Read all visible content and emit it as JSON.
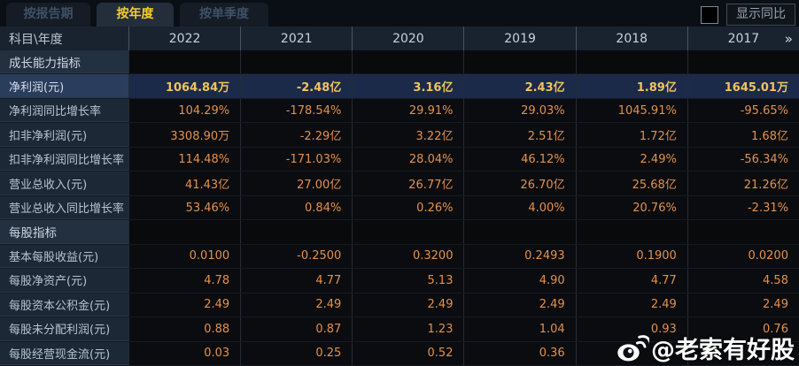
{
  "tabs": [
    {
      "label": "按报告期",
      "active": false
    },
    {
      "label": "按年度",
      "active": true
    },
    {
      "label": "按单季度",
      "active": false
    }
  ],
  "controls": {
    "show_yoy_label": "显示同比",
    "checkbox_checked": false
  },
  "table": {
    "corner_label": "科目\\年度",
    "years": [
      "2022",
      "2021",
      "2020",
      "2019",
      "2018",
      "2017"
    ],
    "more_icon": "»",
    "rows": [
      {
        "type": "section",
        "label": "成长能力指标",
        "values": [
          "",
          "",
          "",
          "",
          "",
          ""
        ]
      },
      {
        "type": "highlight",
        "label": "净利润(元)",
        "values": [
          "1064.84万",
          "-2.48亿",
          "3.16亿",
          "2.43亿",
          "1.89亿",
          "1645.01万"
        ]
      },
      {
        "type": "data",
        "label": "净利润同比增长率",
        "values": [
          "104.29%",
          "-178.54%",
          "29.91%",
          "29.03%",
          "1045.91%",
          "-95.65%"
        ]
      },
      {
        "type": "data",
        "label": "扣非净利润(元)",
        "values": [
          "3308.90万",
          "-2.29亿",
          "3.22亿",
          "2.51亿",
          "1.72亿",
          "1.68亿"
        ]
      },
      {
        "type": "data",
        "label": "扣非净利润同比增长率",
        "values": [
          "114.48%",
          "-171.03%",
          "28.04%",
          "46.12%",
          "2.49%",
          "-56.34%"
        ]
      },
      {
        "type": "data",
        "label": "营业总收入(元)",
        "values": [
          "41.43亿",
          "27.00亿",
          "26.77亿",
          "26.70亿",
          "25.68亿",
          "21.26亿"
        ]
      },
      {
        "type": "data",
        "label": "营业总收入同比增长率",
        "values": [
          "53.46%",
          "0.84%",
          "0.26%",
          "4.00%",
          "20.76%",
          "-2.31%"
        ]
      },
      {
        "type": "section",
        "label": "每股指标",
        "values": [
          "",
          "",
          "",
          "",
          "",
          ""
        ]
      },
      {
        "type": "data",
        "label": "基本每股收益(元)",
        "values": [
          "0.0100",
          "-0.2500",
          "0.3200",
          "0.2493",
          "0.1900",
          "0.0200"
        ]
      },
      {
        "type": "data",
        "label": "每股净资产(元)",
        "values": [
          "4.78",
          "4.77",
          "5.13",
          "4.90",
          "4.77",
          "4.58"
        ]
      },
      {
        "type": "data",
        "label": "每股资本公积金(元)",
        "values": [
          "2.49",
          "2.49",
          "2.49",
          "2.49",
          "2.49",
          "2.49"
        ]
      },
      {
        "type": "data",
        "label": "每股未分配利润(元)",
        "values": [
          "0.88",
          "0.87",
          "1.23",
          "1.04",
          "0.93",
          "0.76"
        ]
      },
      {
        "type": "data",
        "label": "每股经营现金流(元)",
        "values": [
          "0.03",
          "0.25",
          "0.52",
          "0.36",
          "",
          ""
        ]
      }
    ]
  },
  "watermark": {
    "text": "@老索有好股",
    "icon": "weibo-icon"
  },
  "colors": {
    "accent_gold": "#f6cd28",
    "value_orange": "#e2914e",
    "highlight_value_gold": "#f0c35e",
    "highlight_row_bg": "#1b2a49",
    "label_col_bg": "#1d2836",
    "header_row_bg": "#192330",
    "cell_bg": "#0b0c0f"
  }
}
